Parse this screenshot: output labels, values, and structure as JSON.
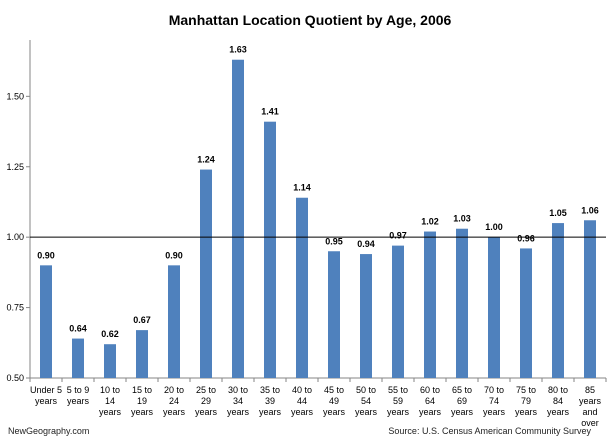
{
  "chart_data": {
    "type": "bar",
    "title": "Manhattan Location Quotient by Age, 2006",
    "categories": [
      [
        "Under 5",
        "years"
      ],
      [
        "5 to 9",
        "years"
      ],
      [
        "10 to",
        "14",
        "years"
      ],
      [
        "15 to",
        "19",
        "years"
      ],
      [
        "20 to",
        "24",
        "years"
      ],
      [
        "25 to",
        "29",
        "years"
      ],
      [
        "30 to",
        "34",
        "years"
      ],
      [
        "35 to",
        "39",
        "years"
      ],
      [
        "40 to",
        "44",
        "years"
      ],
      [
        "45 to",
        "49",
        "years"
      ],
      [
        "50 to",
        "54",
        "years"
      ],
      [
        "55 to",
        "59",
        "years"
      ],
      [
        "60 to",
        "64",
        "years"
      ],
      [
        "65 to",
        "69",
        "years"
      ],
      [
        "70 to",
        "74",
        "years"
      ],
      [
        "75 to",
        "79",
        "years"
      ],
      [
        "80 to",
        "84",
        "years"
      ],
      [
        "85",
        "years",
        "and",
        "over"
      ]
    ],
    "values": [
      0.9,
      0.64,
      0.62,
      0.67,
      0.9,
      1.24,
      1.63,
      1.41,
      1.14,
      0.95,
      0.94,
      0.97,
      1.02,
      1.03,
      1.0,
      0.96,
      1.05,
      1.06
    ],
    "value_labels": [
      "0.90",
      "0.64",
      "0.62",
      "0.67",
      "0.90",
      "1.24",
      "1.63",
      "1.41",
      "1.14",
      "0.95",
      "0.94",
      "0.97",
      "1.02",
      "1.03",
      "1.00",
      "0.96",
      "1.05",
      "1.06"
    ],
    "ylim": [
      0.5,
      1.7
    ],
    "yticks": [
      0.5,
      0.75,
      1.0,
      1.25,
      1.5
    ],
    "ytick_labels": [
      "0.50",
      "0.75",
      "1.00",
      "1.25",
      "1.50"
    ],
    "reference_line": 1.0,
    "bar_color": "#4f81bd",
    "grid": false,
    "legend": "none"
  },
  "footer": {
    "left": "NewGeography.com",
    "right": "Source: U.S. Census American Community Survey"
  }
}
